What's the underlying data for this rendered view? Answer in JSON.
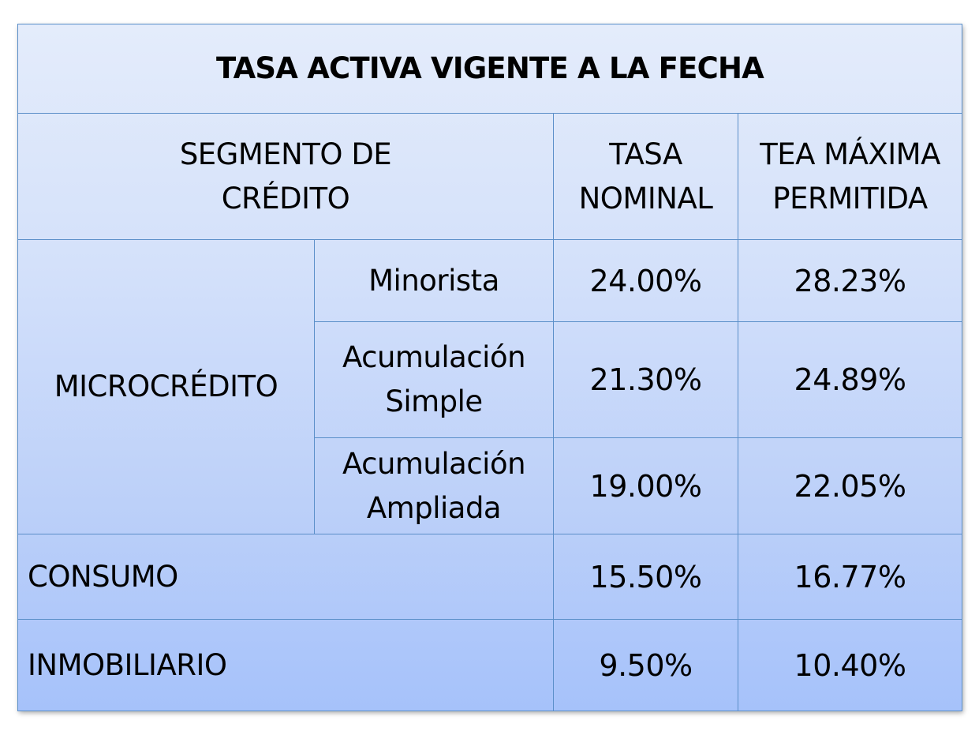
{
  "title": "TASA  ACTIVA VIGENTE A LA FECHA",
  "headers": {
    "segment_line1": "SEGMENTO DE",
    "segment_line2": "CRÉDITO",
    "nominal_line1": "TASA",
    "nominal_line2": "NOMINAL",
    "tea_line1": "TEA MÁXIMA",
    "tea_line2": "PERMITIDA"
  },
  "microcredito": {
    "label": "MICROCRÉDITO",
    "rows": [
      {
        "sub_line1": "Minorista",
        "sub_line2": "",
        "nominal": "24.00%",
        "tea": "28.23%"
      },
      {
        "sub_line1": "Acumulación",
        "sub_line2": "Simple",
        "nominal": "21.30%",
        "tea": "24.89%"
      },
      {
        "sub_line1": "Acumulación",
        "sub_line2": "Ampliada",
        "nominal": "19.00%",
        "tea": "22.05%"
      }
    ]
  },
  "consumo": {
    "label": "CONSUMO",
    "nominal": "15.50%",
    "tea": "16.77%"
  },
  "inmobiliario": {
    "label": "INMOBILIARIO",
    "nominal": "9.50%",
    "tea": "10.40%"
  }
}
